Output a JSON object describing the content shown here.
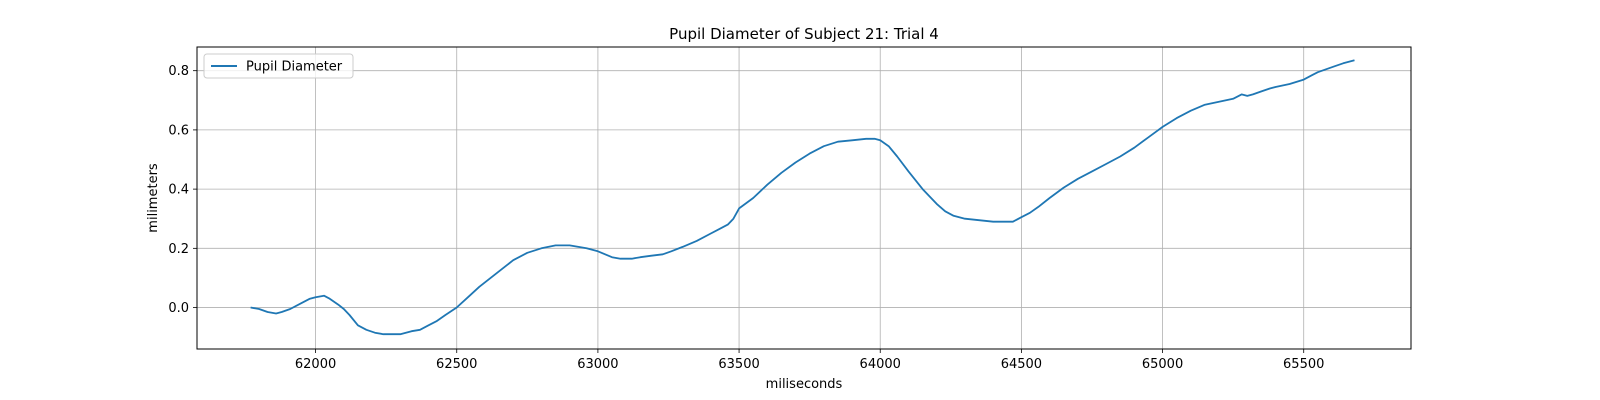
{
  "chart_data": {
    "type": "line",
    "title": "Pupil Diameter of Subject 21: Trial 4",
    "xlabel": "miliseconds",
    "ylabel": "milimeters",
    "xlim": [
      61580,
      65880
    ],
    "ylim": [
      -0.14,
      0.88
    ],
    "xticks": [
      62000,
      62500,
      63000,
      63500,
      64000,
      64500,
      65000,
      65500
    ],
    "yticks": [
      0.0,
      0.2,
      0.4,
      0.6,
      0.8
    ],
    "xtick_labels": [
      "62000",
      "62500",
      "63000",
      "63500",
      "64000",
      "64500",
      "65000",
      "65500"
    ],
    "ytick_labels": [
      "0.0",
      "0.2",
      "0.4",
      "0.6",
      "0.8"
    ],
    "grid": true,
    "legend": {
      "position": "top-left",
      "entries": [
        "Pupil Diameter"
      ]
    },
    "series": [
      {
        "name": "Pupil Diameter",
        "color": "#1f77b4",
        "x": [
          61770,
          61800,
          61830,
          61860,
          61880,
          61910,
          61950,
          61980,
          62000,
          62030,
          62050,
          62080,
          62100,
          62120,
          62150,
          62180,
          62210,
          62240,
          62260,
          62280,
          62300,
          62320,
          62340,
          62370,
          62400,
          62430,
          62460,
          62500,
          62540,
          62580,
          62620,
          62660,
          62700,
          62750,
          62800,
          62850,
          62900,
          62960,
          63000,
          63050,
          63080,
          63100,
          63120,
          63150,
          63190,
          63230,
          63260,
          63300,
          63350,
          63400,
          63430,
          63460,
          63480,
          63500,
          63550,
          63600,
          63650,
          63700,
          63750,
          63800,
          63850,
          63900,
          63950,
          63980,
          64000,
          64030,
          64060,
          64100,
          64150,
          64200,
          64230,
          64260,
          64300,
          64350,
          64400,
          64440,
          64470,
          64500,
          64530,
          64560,
          64600,
          64650,
          64700,
          64750,
          64800,
          64850,
          64900,
          64950,
          65000,
          65050,
          65100,
          65150,
          65200,
          65250,
          65280,
          65300,
          65320,
          65350,
          65380,
          65400,
          65450,
          65500,
          65530,
          65550,
          65580,
          65610,
          65640,
          65680
        ],
        "values": [
          0.0,
          -0.005,
          -0.015,
          -0.02,
          -0.015,
          -0.005,
          0.015,
          0.03,
          0.035,
          0.04,
          0.03,
          0.01,
          -0.005,
          -0.025,
          -0.06,
          -0.075,
          -0.085,
          -0.09,
          -0.09,
          -0.09,
          -0.09,
          -0.085,
          -0.08,
          -0.075,
          -0.06,
          -0.045,
          -0.025,
          0.0,
          0.035,
          0.07,
          0.1,
          0.13,
          0.16,
          0.185,
          0.2,
          0.21,
          0.21,
          0.2,
          0.19,
          0.17,
          0.165,
          0.165,
          0.165,
          0.17,
          0.175,
          0.18,
          0.19,
          0.205,
          0.225,
          0.25,
          0.265,
          0.28,
          0.3,
          0.335,
          0.37,
          0.415,
          0.455,
          0.49,
          0.52,
          0.545,
          0.56,
          0.565,
          0.57,
          0.57,
          0.565,
          0.545,
          0.51,
          0.46,
          0.4,
          0.35,
          0.325,
          0.31,
          0.3,
          0.295,
          0.29,
          0.29,
          0.29,
          0.305,
          0.32,
          0.34,
          0.37,
          0.405,
          0.435,
          0.46,
          0.485,
          0.51,
          0.54,
          0.575,
          0.61,
          0.64,
          0.665,
          0.685,
          0.695,
          0.705,
          0.72,
          0.715,
          0.72,
          0.73,
          0.74,
          0.745,
          0.755,
          0.77,
          0.785,
          0.795,
          0.805,
          0.815,
          0.825,
          0.835
        ]
      }
    ]
  }
}
